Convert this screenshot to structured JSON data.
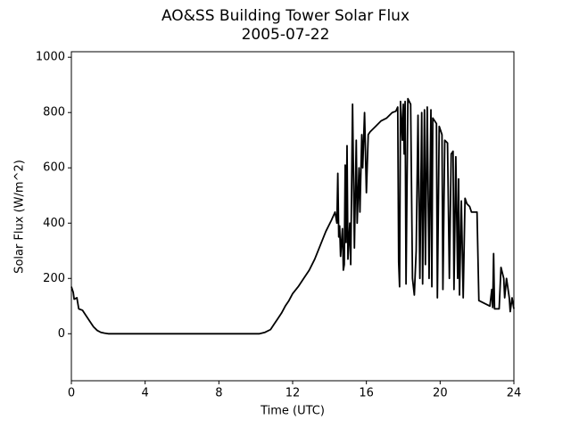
{
  "chart_data": {
    "type": "line",
    "title": "AO&SS Building Tower Solar Flux",
    "subtitle": "2005-07-22",
    "x_label": "Time (UTC)",
    "y_label": "Solar Flux (W/m^2)",
    "xlim": [
      0,
      24
    ],
    "xticks": [
      0,
      4,
      8,
      12,
      16,
      20,
      24
    ],
    "ylim": [
      -170,
      1020
    ],
    "yticks": [
      0,
      200,
      400,
      600,
      800,
      1000
    ],
    "grid": false,
    "series": [
      {
        "name": "Solar Flux",
        "color": "#000000",
        "x": [
          0,
          0.1,
          0.15,
          0.3,
          0.4,
          0.6,
          0.8,
          1.0,
          1.2,
          1.4,
          1.6,
          1.8,
          2.0,
          10.2,
          10.5,
          10.8,
          11.0,
          11.2,
          11.4,
          11.6,
          11.8,
          12.0,
          12.3,
          12.6,
          12.9,
          13.2,
          13.5,
          13.8,
          14.1,
          14.3,
          14.4,
          14.45,
          14.5,
          14.55,
          14.6,
          14.7,
          14.75,
          14.8,
          14.85,
          14.9,
          14.95,
          15.0,
          15.1,
          15.15,
          15.25,
          15.35,
          15.45,
          15.5,
          15.6,
          15.65,
          15.75,
          15.8,
          15.9,
          16.0,
          16.1,
          16.2,
          16.5,
          16.8,
          17.1,
          17.4,
          17.6,
          17.7,
          17.75,
          17.8,
          17.85,
          17.95,
          18.0,
          18.05,
          18.1,
          18.15,
          18.25,
          18.4,
          18.5,
          18.6,
          18.7,
          18.8,
          18.9,
          19.0,
          19.05,
          19.15,
          19.2,
          19.3,
          19.4,
          19.5,
          19.55,
          19.6,
          19.8,
          19.85,
          19.95,
          20.1,
          20.15,
          20.25,
          20.4,
          20.5,
          20.6,
          20.7,
          20.75,
          20.85,
          20.95,
          21.0,
          21.05,
          21.15,
          21.25,
          21.35,
          21.45,
          21.6,
          21.7,
          22.0,
          22.1,
          22.4,
          22.7,
          22.8,
          22.85,
          22.9,
          22.95,
          23.2,
          23.3,
          23.45,
          23.5,
          23.6,
          23.75,
          23.8,
          23.9,
          24.0
        ],
        "values": [
          170,
          150,
          125,
          130,
          90,
          85,
          65,
          45,
          25,
          12,
          5,
          2,
          0,
          0,
          5,
          15,
          35,
          55,
          75,
          100,
          120,
          145,
          170,
          200,
          230,
          270,
          320,
          370,
          410,
          440,
          400,
          580,
          350,
          390,
          280,
          380,
          230,
          250,
          610,
          330,
          680,
          270,
          400,
          250,
          830,
          310,
          700,
          400,
          600,
          440,
          720,
          600,
          800,
          510,
          720,
          730,
          750,
          770,
          780,
          800,
          805,
          820,
          260,
          170,
          840,
          700,
          830,
          650,
          840,
          180,
          850,
          830,
          200,
          140,
          300,
          790,
          200,
          800,
          180,
          810,
          250,
          820,
          200,
          810,
          170,
          780,
          760,
          130,
          750,
          720,
          160,
          700,
          690,
          200,
          650,
          660,
          160,
          640,
          200,
          560,
          140,
          480,
          130,
          490,
          470,
          460,
          440,
          440,
          120,
          110,
          100,
          160,
          95,
          290,
          90,
          90,
          240,
          200,
          130,
          200,
          130,
          80,
          130,
          90
        ]
      }
    ]
  }
}
